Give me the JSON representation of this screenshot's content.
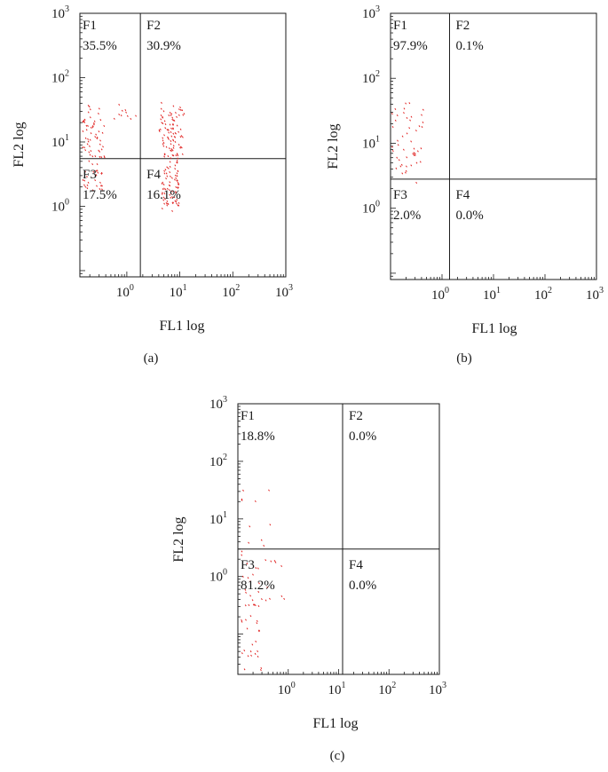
{
  "chart_data": [
    {
      "type": "scatter",
      "panel_label": "(a)",
      "xlabel": "FL1 log",
      "ylabel": "FL2 log",
      "xscale": "log",
      "yscale": "log",
      "xlim": [
        0.13,
        1000
      ],
      "ylim": [
        0.08,
        1000
      ],
      "x_ticks": [
        {
          "value": 1,
          "label_base": "10",
          "label_exp": "0"
        },
        {
          "value": 10,
          "label_base": "10",
          "label_exp": "1"
        },
        {
          "value": 100,
          "label_base": "10",
          "label_exp": "2"
        },
        {
          "value": 1000,
          "label_base": "10",
          "label_exp": "3"
        }
      ],
      "y_ticks": [
        {
          "value": 1,
          "label_base": "10",
          "label_exp": "0"
        },
        {
          "value": 10,
          "label_base": "10",
          "label_exp": "1"
        },
        {
          "value": 100,
          "label_base": "10",
          "label_exp": "2"
        },
        {
          "value": 1000,
          "label_base": "10",
          "label_exp": "3"
        }
      ],
      "gate_x": 1.8,
      "gate_y": 5.5,
      "quadrants": [
        {
          "name": "F1",
          "percent": "35.5%"
        },
        {
          "name": "F2",
          "percent": "30.9%"
        },
        {
          "name": "F3",
          "percent": "17.5%"
        },
        {
          "name": "F4",
          "percent": "16.1%"
        }
      ],
      "point_color": "#e0201f",
      "clusters": [
        {
          "count": 55,
          "x_range": [
            0.14,
            0.38
          ],
          "y_range": [
            5.6,
            38
          ],
          "seed": 11
        },
        {
          "count": 10,
          "x_range": [
            0.55,
            1.5
          ],
          "y_range": [
            22,
            40
          ],
          "seed": 12
        },
        {
          "count": 28,
          "x_range": [
            0.14,
            0.34
          ],
          "y_range": [
            1.8,
            5.4
          ],
          "seed": 13
        },
        {
          "count": 95,
          "x_range": [
            4.0,
            12
          ],
          "y_range": [
            5.6,
            42
          ],
          "seed": 14
        },
        {
          "count": 75,
          "x_range": [
            4.5,
            9.5
          ],
          "y_range": [
            0.85,
            5.4
          ],
          "seed": 15
        }
      ]
    },
    {
      "type": "scatter",
      "panel_label": "(b)",
      "xlabel": "FL1 log",
      "ylabel": "FL2 log",
      "xscale": "log",
      "yscale": "log",
      "xlim": [
        0.1,
        1000
      ],
      "ylim": [
        0.08,
        1000
      ],
      "x_ticks": [
        {
          "value": 1,
          "label_base": "10",
          "label_exp": "0"
        },
        {
          "value": 10,
          "label_base": "10",
          "label_exp": "1"
        },
        {
          "value": 100,
          "label_base": "10",
          "label_exp": "2"
        },
        {
          "value": 1000,
          "label_base": "10",
          "label_exp": "3"
        }
      ],
      "y_ticks": [
        {
          "value": 1,
          "label_base": "10",
          "label_exp": "0"
        },
        {
          "value": 10,
          "label_base": "10",
          "label_exp": "1"
        },
        {
          "value": 100,
          "label_base": "10",
          "label_exp": "2"
        },
        {
          "value": 1000,
          "label_base": "10",
          "label_exp": "3"
        }
      ],
      "gate_x": 1.4,
      "gate_y": 2.8,
      "quadrants": [
        {
          "name": "F1",
          "percent": "97.9%"
        },
        {
          "name": "F2",
          "percent": "0.1%"
        },
        {
          "name": "F3",
          "percent": "2.0%"
        },
        {
          "name": "F4",
          "percent": "0.0%"
        }
      ],
      "point_color": "#e0201f",
      "clusters": [
        {
          "count": 48,
          "x_range": [
            0.1,
            0.45
          ],
          "y_range": [
            3.5,
            48
          ],
          "seed": 21
        },
        {
          "count": 1,
          "x_range": [
            0.3,
            0.35
          ],
          "y_range": [
            2.5,
            2.6
          ],
          "seed": 22
        }
      ]
    },
    {
      "type": "scatter",
      "panel_label": "(c)",
      "xlabel": "FL1 log",
      "ylabel": "FL2 log",
      "xscale": "log",
      "yscale": "log",
      "xlim": [
        0.1,
        1000
      ],
      "ylim": [
        0.02,
        1000
      ],
      "x_ticks": [
        {
          "value": 1,
          "label_base": "10",
          "label_exp": "0"
        },
        {
          "value": 10,
          "label_base": "10",
          "label_exp": "1"
        },
        {
          "value": 100,
          "label_base": "10",
          "label_exp": "2"
        },
        {
          "value": 1000,
          "label_base": "10",
          "label_exp": "3"
        }
      ],
      "y_ticks": [
        {
          "value": 1,
          "label_base": "10",
          "label_exp": "0"
        },
        {
          "value": 10,
          "label_base": "10",
          "label_exp": "1"
        },
        {
          "value": 100,
          "label_base": "10",
          "label_exp": "2"
        },
        {
          "value": 1000,
          "label_base": "10",
          "label_exp": "3"
        }
      ],
      "gate_x": 12,
      "gate_y": 3.0,
      "quadrants": [
        {
          "name": "F1",
          "percent": "18.8%"
        },
        {
          "name": "F2",
          "percent": "0.0%"
        },
        {
          "name": "F3",
          "percent": "81.2%"
        },
        {
          "name": "F4",
          "percent": "0.0%"
        }
      ],
      "point_color": "#e0201f",
      "clusters": [
        {
          "count": 10,
          "x_range": [
            0.11,
            0.5
          ],
          "y_range": [
            3.2,
            35
          ],
          "seed": 31
        },
        {
          "count": 45,
          "x_range": [
            0.1,
            0.3
          ],
          "y_range": [
            0.022,
            3.0
          ],
          "seed": 32
        },
        {
          "count": 10,
          "x_range": [
            0.25,
            1.0
          ],
          "y_range": [
            0.2,
            2.5
          ],
          "seed": 33
        }
      ]
    }
  ]
}
